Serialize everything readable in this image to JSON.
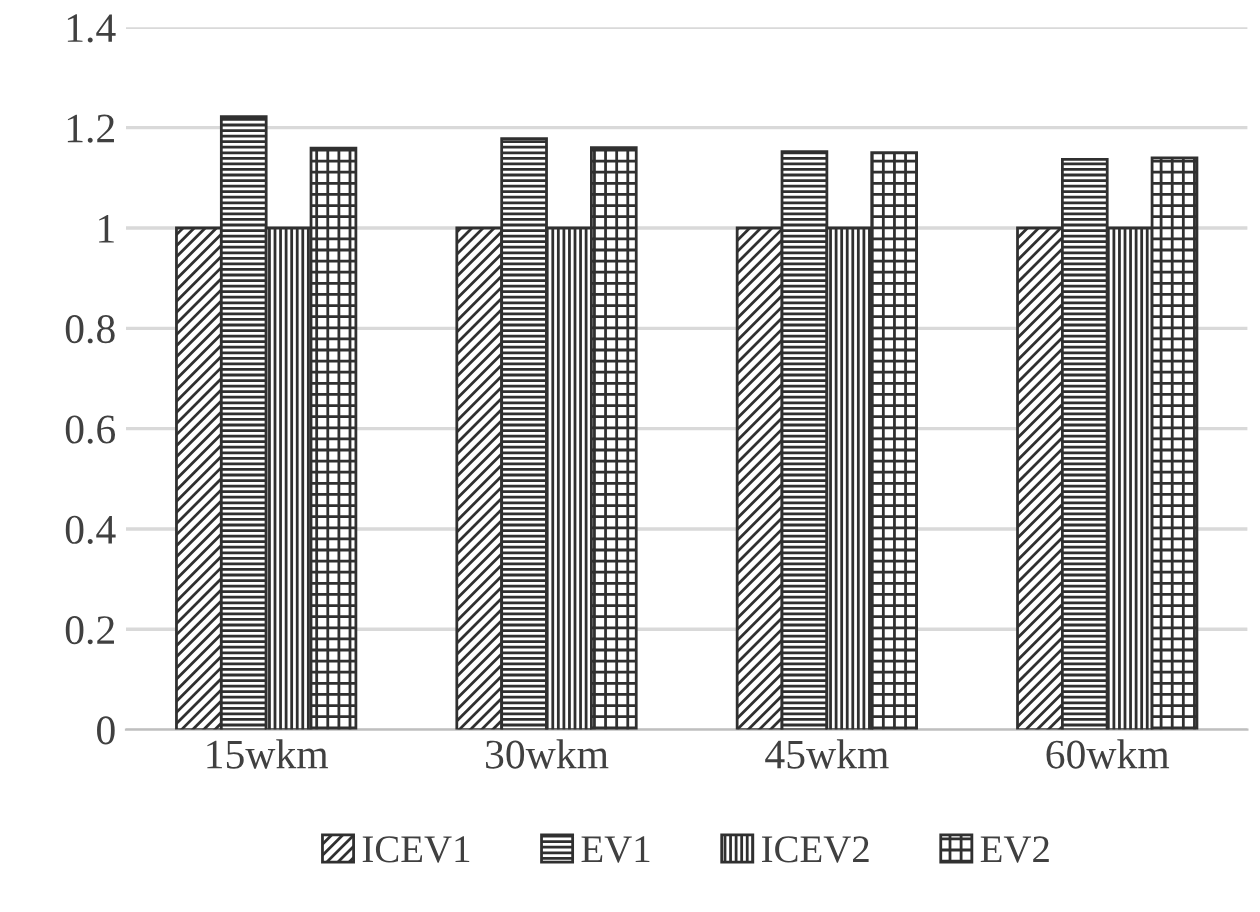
{
  "chart_data": {
    "type": "bar",
    "categories": [
      "15wkm",
      "30wkm",
      "45wkm",
      "60wkm"
    ],
    "series": [
      {
        "name": "ICEV1",
        "color": "#303030",
        "values": [
          1,
          1,
          1,
          1
        ]
      },
      {
        "name": "EV1",
        "color": "#303030",
        "values": [
          1.222,
          1.178,
          1.152,
          1.137
        ]
      },
      {
        "name": "ICEV2",
        "color": "#303030",
        "values": [
          1,
          1,
          1,
          1
        ]
      },
      {
        "name": "EV2",
        "color": "#303030",
        "values": [
          1.159,
          1.16,
          1.15,
          1.14
        ]
      }
    ],
    "ylim": [
      0,
      1.4
    ],
    "yticks": [
      0,
      {
        "value": 0.2,
        "label": "0.2"
      },
      {
        "value": 0.4,
        "label": "0.4"
      },
      {
        "value": 0.6,
        "label": "0.6"
      },
      {
        "value": 0.8,
        "label": "0.8"
      },
      1,
      {
        "value": 1.2,
        "label": "1.2"
      },
      {
        "value": 1.4,
        "label": "1.4"
      }
    ],
    "grid": "y",
    "legend": "bottom"
  }
}
